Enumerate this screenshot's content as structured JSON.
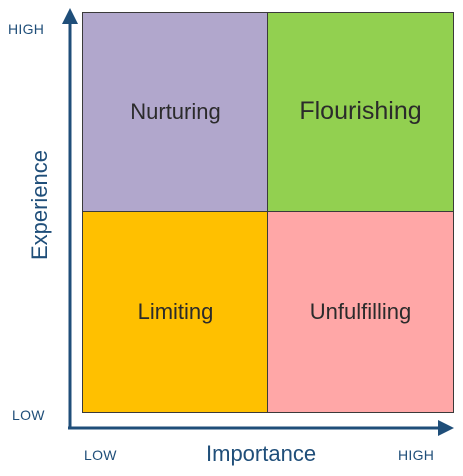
{
  "quadrants": {
    "top_left": {
      "label": "Nurturing",
      "color": "#b1a7cc"
    },
    "top_right": {
      "label": "Flourishing",
      "color": "#92d050"
    },
    "bottom_left": {
      "label": "Limiting",
      "color": "#ffc000"
    },
    "bottom_right": {
      "label": "Unfulfilling",
      "color": "#ffa7a7"
    }
  },
  "axes": {
    "x": {
      "title": "Importance",
      "low": "LOW",
      "high": "HIGH"
    },
    "y": {
      "title": "Experience",
      "low": "LOW",
      "high": "HIGH"
    },
    "color": "#1f4e79"
  }
}
